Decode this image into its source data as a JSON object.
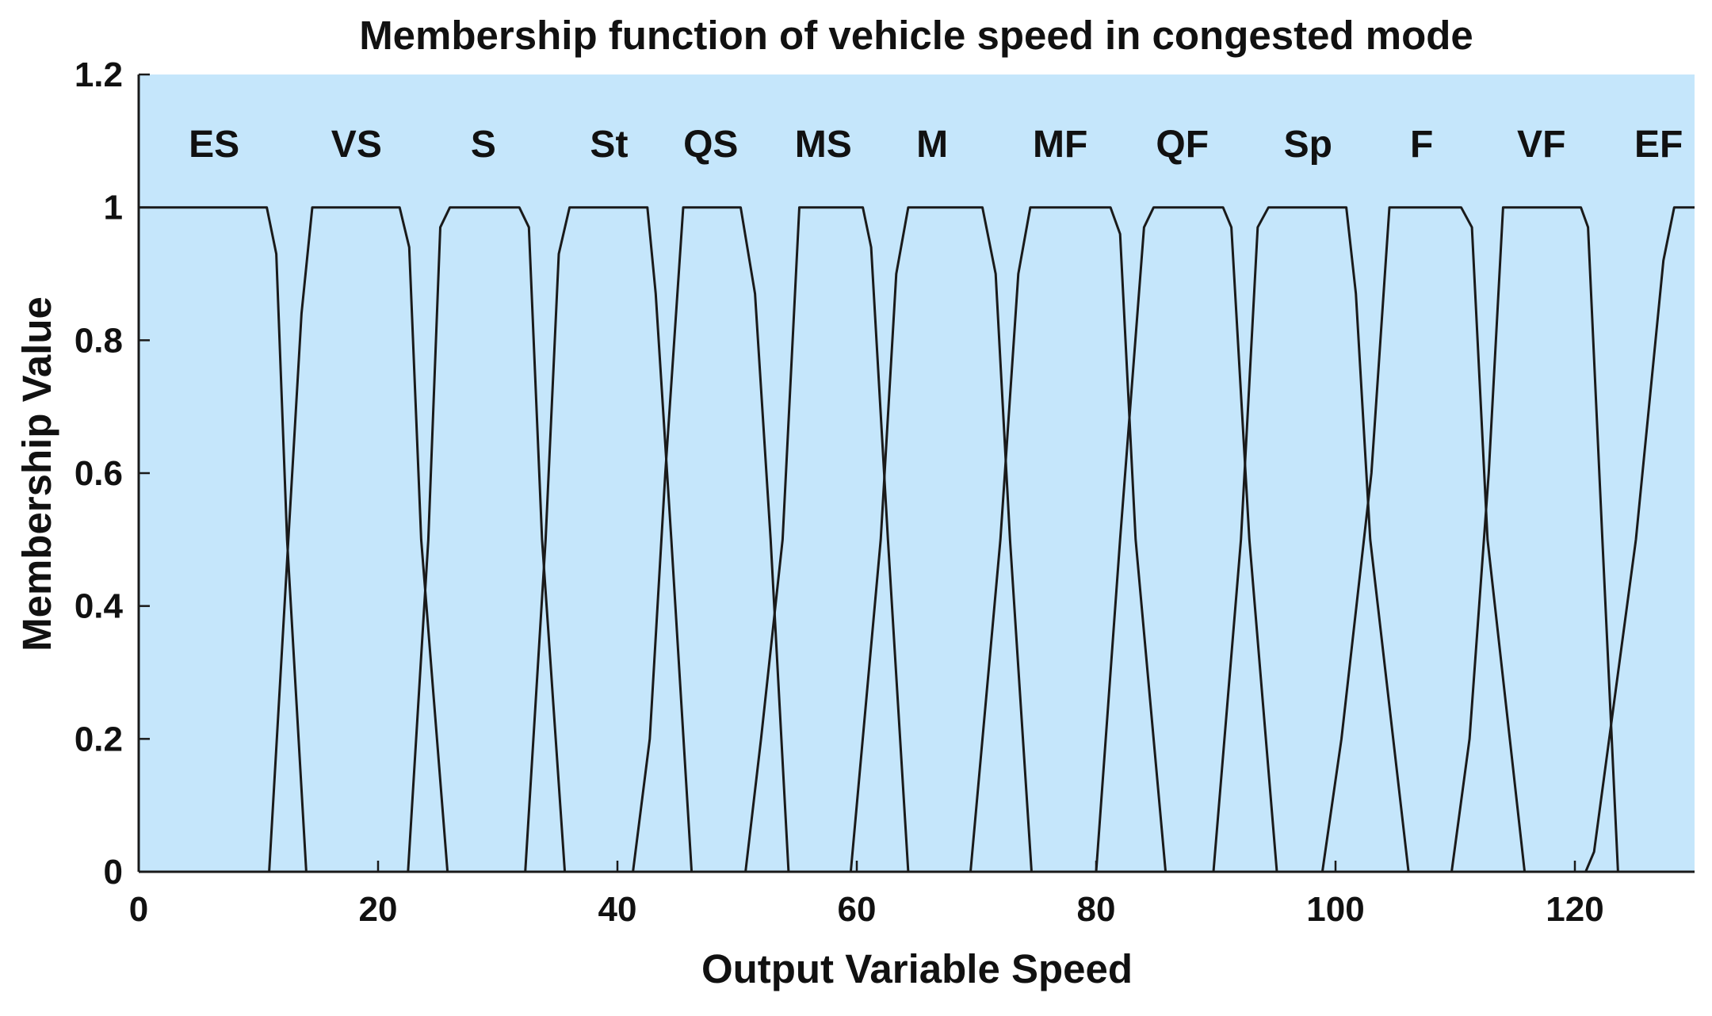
{
  "chart_data": {
    "type": "line",
    "title": "Membership function of vehicle speed in congested mode",
    "xlabel": "Output Variable Speed",
    "ylabel": "Membership Value",
    "xlim": [
      0,
      130
    ],
    "ylim": [
      0,
      1.2
    ],
    "xticks": [
      0,
      20,
      40,
      60,
      80,
      100,
      120
    ],
    "yticks": [
      0,
      0.2,
      0.4,
      0.6,
      0.8,
      1,
      1.2
    ],
    "xtick_labels": [
      "0",
      "20",
      "40",
      "60",
      "80",
      "100",
      "120"
    ],
    "ytick_labels": [
      "0",
      "0.2",
      "0.4",
      "0.6",
      "0.8",
      "1",
      "1.2"
    ],
    "background_color": "#c5e6fb",
    "line_color": "#1a1a1a",
    "series": [
      {
        "name": "ES",
        "label_x": 6.3,
        "x": [
          0,
          10.7,
          11.5,
          12.4,
          14.0
        ],
        "y": [
          1,
          1,
          0.93,
          0.5,
          0
        ]
      },
      {
        "name": "VS",
        "label_x": 18.2,
        "x": [
          10.9,
          12.5,
          13.6,
          14.5,
          21.8,
          22.6,
          23.6,
          25.8
        ],
        "y": [
          0,
          0.5,
          0.84,
          1,
          1,
          0.94,
          0.5,
          0
        ]
      },
      {
        "name": "S",
        "label_x": 28.8,
        "x": [
          22.5,
          24.2,
          25.2,
          26.0,
          31.8,
          32.6,
          33.7,
          35.6
        ],
        "y": [
          0,
          0.5,
          0.97,
          1,
          1,
          0.97,
          0.5,
          0
        ]
      },
      {
        "name": "St",
        "label_x": 39.3,
        "x": [
          32.3,
          34.0,
          35.1,
          36.0,
          42.5,
          43.2,
          44.5,
          46.2
        ],
        "y": [
          0,
          0.5,
          0.93,
          1,
          1,
          0.87,
          0.5,
          0
        ]
      },
      {
        "name": "QS",
        "label_x": 47.8,
        "x": [
          41.3,
          42.7,
          44.0,
          45.5,
          50.3,
          51.5,
          52.8,
          54.3
        ],
        "y": [
          0,
          0.2,
          0.6,
          1,
          1,
          0.87,
          0.5,
          0
        ]
      },
      {
        "name": "MS",
        "label_x": 57.2,
        "x": [
          50.7,
          52.0,
          53.8,
          55.2,
          60.5,
          61.2,
          62.6,
          64.3
        ],
        "y": [
          0,
          0.2,
          0.5,
          1,
          1,
          0.94,
          0.5,
          0
        ]
      },
      {
        "name": "M",
        "label_x": 66.3,
        "x": [
          59.5,
          62.0,
          63.3,
          64.3,
          70.5,
          71.6,
          72.8,
          74.6
        ],
        "y": [
          0,
          0.5,
          0.9,
          1,
          1,
          0.9,
          0.5,
          0
        ]
      },
      {
        "name": "MF",
        "label_x": 77.0,
        "x": [
          69.5,
          72.0,
          73.5,
          74.5,
          81.2,
          82.0,
          83.3,
          85.8
        ],
        "y": [
          0,
          0.5,
          0.9,
          1,
          1,
          0.96,
          0.5,
          0
        ]
      },
      {
        "name": "QF",
        "label_x": 87.2,
        "x": [
          80.0,
          82.0,
          84.0,
          84.8,
          90.6,
          91.3,
          92.8,
          95.1
        ],
        "y": [
          0,
          0.5,
          0.97,
          1,
          1,
          0.97,
          0.5,
          0
        ]
      },
      {
        "name": "Sp",
        "label_x": 97.7,
        "x": [
          89.8,
          92.1,
          93.5,
          94.4,
          100.9,
          101.7,
          102.9,
          106.1
        ],
        "y": [
          0,
          0.5,
          0.97,
          1,
          1,
          0.87,
          0.5,
          0
        ]
      },
      {
        "name": "F",
        "label_x": 107.2,
        "x": [
          98.9,
          100.5,
          103.0,
          104.5,
          110.5,
          111.4,
          112.7,
          115.8
        ],
        "y": [
          0,
          0.2,
          0.6,
          1,
          1,
          0.97,
          0.5,
          0
        ]
      },
      {
        "name": "VF",
        "label_x": 117.2,
        "x": [
          109.7,
          111.2,
          112.8,
          114.0,
          120.5,
          121.1,
          122.3,
          123.6
        ],
        "y": [
          0,
          0.2,
          0.6,
          1,
          1,
          0.97,
          0.5,
          0
        ]
      },
      {
        "name": "EF",
        "label_x": 127.0,
        "x": [
          120.9,
          121.6,
          125.1,
          127.4,
          128.3,
          130
        ],
        "y": [
          0,
          0.03,
          0.5,
          0.92,
          1,
          1
        ]
      }
    ]
  }
}
